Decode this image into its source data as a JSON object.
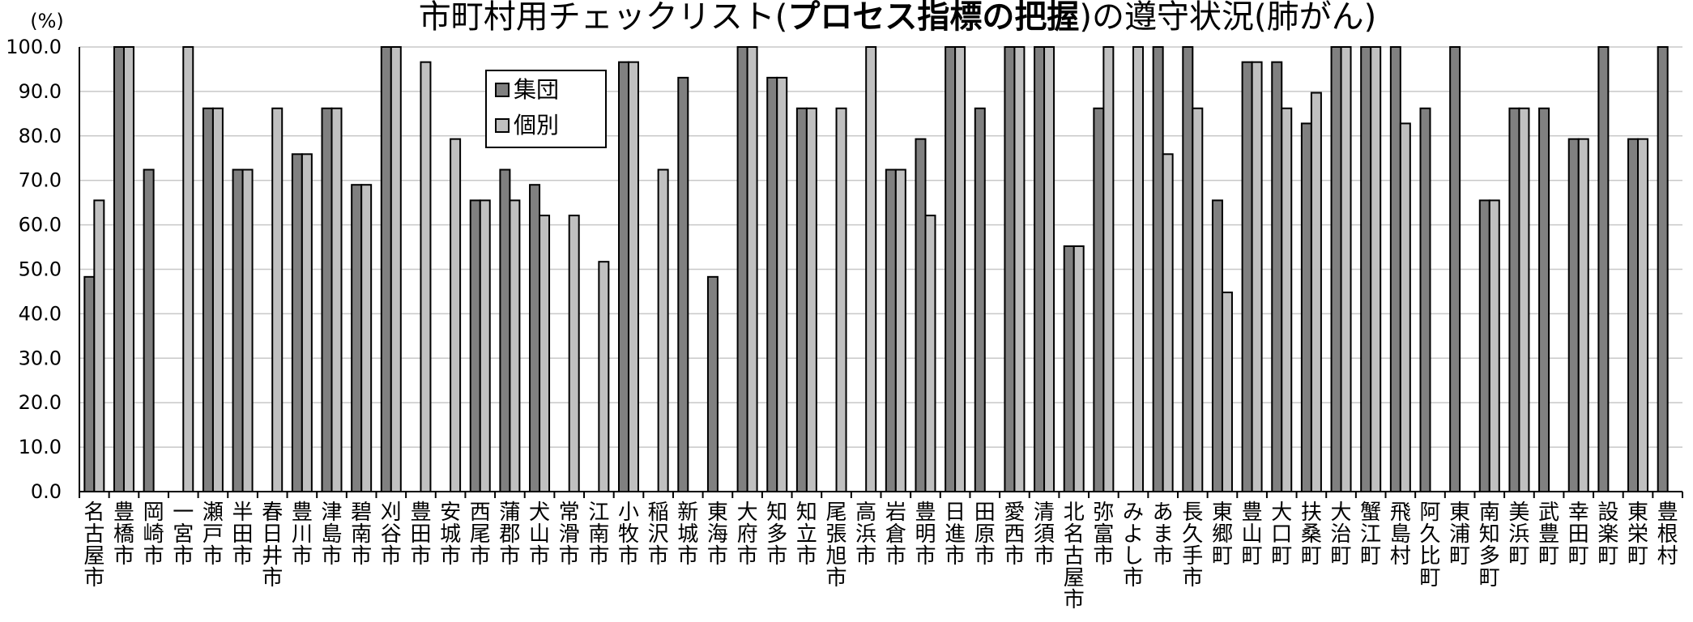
{
  "chart_data": {
    "type": "bar",
    "title_parts": [
      "市町村用チェックリスト(",
      "プロセス指標の把握",
      ")の遵守状況(肺がん)"
    ],
    "ylabel": "(%)",
    "ylim": [
      0,
      100
    ],
    "yticks": [
      "0.0",
      "10.0",
      "20.0",
      "30.0",
      "40.0",
      "50.0",
      "60.0",
      "70.0",
      "80.0",
      "90.0",
      "100.0"
    ],
    "grid": true,
    "legend_position": "top-center",
    "categories": [
      "名古屋市",
      "豊橋市",
      "岡崎市",
      "一宮市",
      "瀬戸市",
      "半田市",
      "春日井市",
      "豊川市",
      "津島市",
      "碧南市",
      "刈谷市",
      "豊田市",
      "安城市",
      "西尾市",
      "蒲郡市",
      "犬山市",
      "常滑市",
      "江南市",
      "小牧市",
      "稲沢市",
      "新城市",
      "東海市",
      "大府市",
      "知多市",
      "知立市",
      "尾張旭市",
      "高浜市",
      "岩倉市",
      "豊明市",
      "日進市",
      "田原市",
      "愛西市",
      "清須市",
      "北名古屋市",
      "弥富市",
      "みよし市",
      "あま市",
      "長久手市",
      "東郷町",
      "豊山町",
      "大口町",
      "扶桑町",
      "大治町",
      "蟹江町",
      "飛島村",
      "阿久比町",
      "東浦町",
      "南知多町",
      "美浜町",
      "武豊町",
      "幸田町",
      "設楽町",
      "東栄町",
      "豊根村"
    ],
    "series": [
      {
        "name": "集団",
        "color": "#808080",
        "values": [
          48.3,
          100,
          72.4,
          null,
          86.2,
          72.4,
          null,
          75.9,
          86.2,
          69.0,
          100,
          null,
          null,
          65.5,
          72.4,
          69.0,
          null,
          null,
          96.6,
          null,
          93.1,
          48.3,
          100,
          93.1,
          86.2,
          null,
          null,
          72.4,
          79.3,
          100,
          86.2,
          100,
          100,
          55.2,
          86.2,
          null,
          100,
          100,
          65.5,
          96.6,
          96.6,
          82.8,
          100,
          100,
          100,
          86.2,
          100,
          65.5,
          86.2,
          86.2,
          79.3,
          100,
          79.3,
          100
        ]
      },
      {
        "name": "個別",
        "color": "#c0c0c0",
        "values": [
          65.5,
          100,
          null,
          100,
          86.2,
          72.4,
          86.2,
          75.9,
          86.2,
          69.0,
          100,
          96.6,
          79.3,
          65.5,
          65.5,
          62.1,
          62.1,
          51.7,
          96.6,
          72.4,
          null,
          null,
          100,
          93.1,
          86.2,
          86.2,
          100,
          72.4,
          62.1,
          100,
          null,
          100,
          100,
          55.2,
          100,
          100,
          75.9,
          86.2,
          44.8,
          96.6,
          86.2,
          89.7,
          100,
          100,
          82.8,
          null,
          null,
          65.5,
          86.2,
          null,
          79.3,
          null,
          79.3,
          null
        ]
      }
    ]
  }
}
